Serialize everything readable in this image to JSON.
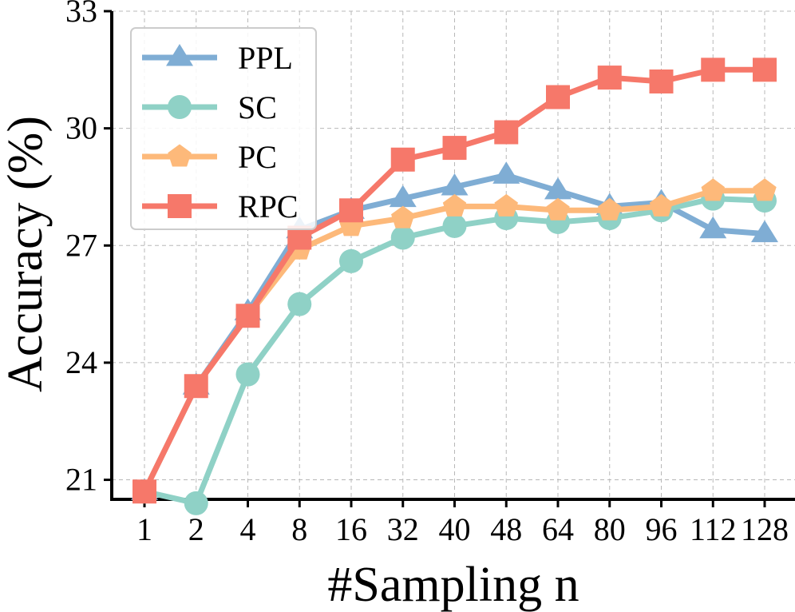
{
  "chart_data": {
    "type": "line",
    "xlabel": "#Sampling n",
    "ylabel": "Accuracy (%)",
    "categories": [
      "1",
      "2",
      "4",
      "8",
      "16",
      "32",
      "40",
      "48",
      "64",
      "80",
      "96",
      "112",
      "128"
    ],
    "ylim": [
      20.5,
      33
    ],
    "yticks": [
      21,
      24,
      27,
      30,
      33
    ],
    "grid": true,
    "legend_position": "top-left",
    "series": [
      {
        "name": "PPL",
        "color": "#7fadd4",
        "marker": "triangle",
        "values": [
          20.7,
          23.4,
          25.3,
          27.4,
          27.9,
          28.2,
          28.5,
          28.8,
          28.4,
          28.0,
          28.1,
          27.4,
          27.3
        ]
      },
      {
        "name": "SC",
        "color": "#8fd1c6",
        "marker": "circle",
        "values": [
          20.7,
          20.4,
          23.7,
          25.5,
          26.6,
          27.2,
          27.5,
          27.7,
          27.6,
          27.7,
          27.9,
          28.2,
          28.15
        ]
      },
      {
        "name": "PC",
        "color": "#fdb97a",
        "marker": "pentagon",
        "values": [
          20.7,
          23.4,
          25.2,
          26.9,
          27.5,
          27.7,
          28.0,
          28.0,
          27.9,
          27.9,
          28.0,
          28.4,
          28.4
        ]
      },
      {
        "name": "RPC",
        "color": "#f6786a",
        "marker": "square",
        "values": [
          20.7,
          23.4,
          25.2,
          27.2,
          27.9,
          29.2,
          29.5,
          29.9,
          30.8,
          31.3,
          31.2,
          31.5,
          31.5
        ]
      }
    ]
  }
}
